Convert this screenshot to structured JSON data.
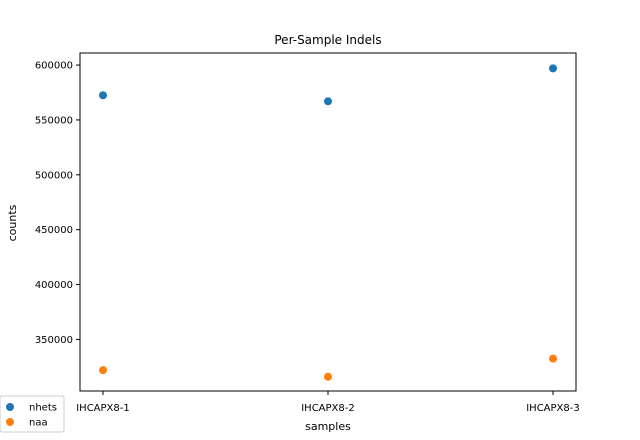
{
  "chart_data": {
    "type": "scatter",
    "title": "Per-Sample Indels",
    "xlabel": "samples",
    "ylabel": "counts",
    "categories": [
      "IHCAPX8-1",
      "IHCAPX8-2",
      "IHCAPX8-3"
    ],
    "series": [
      {
        "name": "nhets",
        "color": "#1f77b4",
        "values": [
          572500,
          567000,
          597000
        ]
      },
      {
        "name": "naa",
        "color": "#ff7f0e",
        "values": [
          322000,
          316000,
          332500
        ]
      }
    ],
    "ylim": [
      303000,
      611000
    ],
    "yticks": [
      350000,
      400000,
      450000,
      500000,
      550000,
      600000
    ],
    "ytick_labels": [
      "350000",
      "400000",
      "450000",
      "500000",
      "550000",
      "600000"
    ],
    "grid": false,
    "legend_position": "bottom-left"
  }
}
